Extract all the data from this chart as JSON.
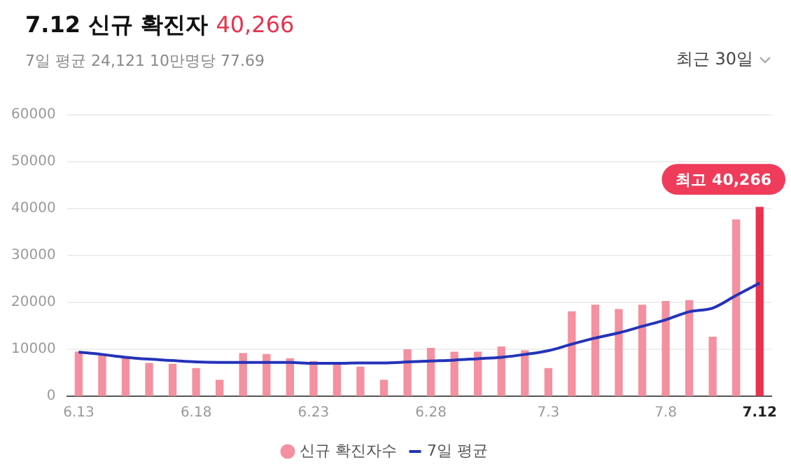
{
  "chart_data": {
    "type": "bar",
    "title": "7.12 신규 확진자 40,266",
    "subtitle": "7일 평균 24,121  10만명당 77.69",
    "categories": [
      "6.13",
      null,
      null,
      null,
      null,
      "6.18",
      null,
      null,
      null,
      null,
      "6.23",
      null,
      null,
      null,
      null,
      "6.28",
      null,
      null,
      null,
      null,
      "7.3",
      null,
      null,
      null,
      null,
      "7.8",
      null,
      null,
      null,
      "7.12"
    ],
    "series": [
      {
        "name": "신규 확진자수",
        "color": "#f4909f",
        "colors": [
          "#f4909f",
          "#f4909f",
          "#f4909f",
          "#f4909f",
          "#f4909f",
          "#f4909f",
          "#f4909f",
          "#f4909f",
          "#f4909f",
          "#f4909f",
          "#f4909f",
          "#f4909f",
          "#f4909f",
          "#f4909f",
          "#f4909f",
          "#f4909f",
          "#f4909f",
          "#f4909f",
          "#f4909f",
          "#f4909f",
          "#f4909f",
          "#f4909f",
          "#f4909f",
          "#f4909f",
          "#f4909f",
          "#f4909f",
          "#f4909f",
          "#f4909f",
          "#f4909f",
          "#e8334f"
        ],
        "values": [
          9400,
          8900,
          8100,
          7000,
          6800,
          5900,
          3400,
          9100,
          8900,
          8000,
          7400,
          7200,
          6200,
          3400,
          9900,
          10200,
          9400,
          9400,
          10500,
          9700,
          5900,
          18000,
          19400,
          18500,
          19400,
          20200,
          20400,
          12600,
          37600,
          40266
        ]
      },
      {
        "name": "7일 평균",
        "type": "line",
        "color": "#2433b8",
        "values": [
          9400,
          8900,
          8300,
          7900,
          7600,
          7300,
          7200,
          7200,
          7200,
          7200,
          7000,
          7000,
          7100,
          7100,
          7300,
          7500,
          7700,
          8000,
          8300,
          8900,
          9700,
          11100,
          12400,
          13500,
          14900,
          16300,
          18000,
          18800,
          21500,
          24121
        ]
      }
    ],
    "ylim": [
      0,
      60000
    ],
    "yticks": [
      0,
      10000,
      20000,
      30000,
      40000,
      50000,
      60000
    ],
    "grid": "y",
    "legend": "bottom",
    "marker": "none",
    "annotations": [
      {
        "text": "최고 40,266",
        "x": "7.12",
        "y": 40266
      },
      "최근 30일"
    ]
  }
}
